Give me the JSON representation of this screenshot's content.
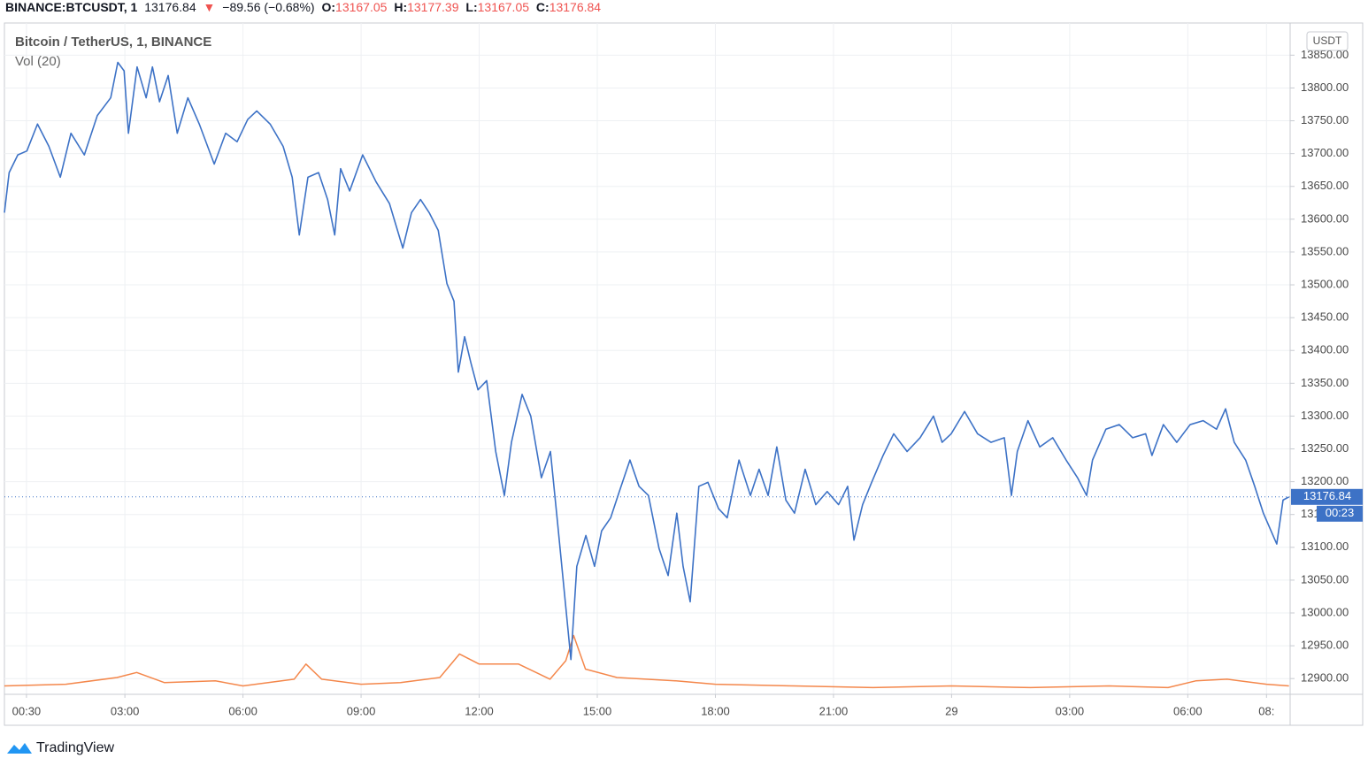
{
  "header": {
    "symbol": "BINANCE:BTCUSDT, 1",
    "last": "13176.84",
    "arrow": "▼",
    "change": "−89.56 (−0.68%)",
    "open_label": "O:",
    "open": "13167.05",
    "high_label": "H:",
    "high": "13177.39",
    "low_label": "L:",
    "low": "13167.05",
    "close_label": "C:",
    "close": "13176.84"
  },
  "chart_data": {
    "type": "line",
    "currency": "USDT",
    "series": [
      {
        "name": "Bitcoin / TetherUS, 1, BINANCE",
        "color": "#3d72c6",
        "x": [
          -0.06,
          0.06,
          0.28,
          0.51,
          0.78,
          1.07,
          1.36,
          1.63,
          1.97,
          2.3,
          2.64,
          2.82,
          2.98,
          3.09,
          3.31,
          3.54,
          3.7,
          3.88,
          4.1,
          4.33,
          4.6,
          4.89,
          5.27,
          5.56,
          5.85,
          6.12,
          6.35,
          6.69,
          7.02,
          7.25,
          7.43,
          7.65,
          7.92,
          8.15,
          8.33,
          8.48,
          8.71,
          9.04,
          9.38,
          9.72,
          10.06,
          10.28,
          10.51,
          10.73,
          10.96,
          11.18,
          11.36,
          11.47,
          11.63,
          11.79,
          11.97,
          12.19,
          12.42,
          12.64,
          12.82,
          13.09,
          13.31,
          13.58,
          13.81,
          13.99,
          14.21,
          14.33,
          14.48,
          14.71,
          14.93,
          15.11,
          15.34,
          15.56,
          15.83,
          16.06,
          16.3,
          16.57,
          16.8,
          17.02,
          17.18,
          17.36,
          17.58,
          17.81,
          18.08,
          18.3,
          18.6,
          18.89,
          19.11,
          19.34,
          19.56,
          19.79,
          20.01,
          20.28,
          20.55,
          20.84,
          21.13,
          21.36,
          21.52,
          21.74,
          21.97,
          22.26,
          22.53,
          22.87,
          23.2,
          23.54,
          23.76,
          23.99,
          24.33,
          24.66,
          25.0,
          25.34,
          25.52,
          25.67,
          25.94,
          26.24,
          26.57,
          26.91,
          27.2,
          27.43,
          27.58,
          27.92,
          28.26,
          28.6,
          28.93,
          29.09,
          29.38,
          29.72,
          30.06,
          30.39,
          30.73,
          30.96,
          31.18,
          31.47,
          31.7,
          31.92,
          32.26,
          32.42,
          32.57
        ],
        "values": [
          13610,
          13671,
          13698,
          13704,
          13745,
          13711,
          13664,
          13731,
          13698,
          13758,
          13785,
          13839,
          13826,
          13731,
          13832,
          13785,
          13832,
          13779,
          13819,
          13731,
          13785,
          13745,
          13684,
          13731,
          13718,
          13752,
          13765,
          13745,
          13711,
          13664,
          13576,
          13664,
          13671,
          13630,
          13576,
          13677,
          13643,
          13698,
          13657,
          13624,
          13556,
          13610,
          13630,
          13610,
          13583,
          13502,
          13475,
          13367,
          13421,
          13381,
          13340,
          13354,
          13246,
          13179,
          13260,
          13333,
          13300,
          13206,
          13246,
          13138,
          13003,
          12929,
          13071,
          13118,
          13071,
          13125,
          13145,
          13185,
          13233,
          13193,
          13179,
          13098,
          13057,
          13152,
          13071,
          13017,
          13193,
          13199,
          13159,
          13145,
          13233,
          13179,
          13219,
          13179,
          13253,
          13172,
          13152,
          13219,
          13165,
          13185,
          13165,
          13193,
          13111,
          13165,
          13199,
          13240,
          13273,
          13246,
          13267,
          13300,
          13260,
          13273,
          13307,
          13273,
          13260,
          13267,
          13179,
          13246,
          13293,
          13253,
          13267,
          13233,
          13206,
          13179,
          13233,
          13280,
          13287,
          13267,
          13273,
          13240,
          13287,
          13260,
          13287,
          13293,
          13280,
          13311,
          13260,
          13233,
          13193,
          13152,
          13105,
          13172,
          13176.84
        ]
      },
      {
        "name": "Vol (20)",
        "color": "#f4874b",
        "axis": "y2",
        "x": [
          -0.06,
          1.5,
          2.8,
          3.3,
          4,
          5.3,
          6,
          7.3,
          7.6,
          8,
          9,
          10,
          11,
          11.5,
          12,
          13,
          13.8,
          14.2,
          14.4,
          14.7,
          15.5,
          17,
          18,
          20,
          22,
          24,
          26,
          28,
          29.5,
          30.2,
          31,
          32,
          32.57
        ],
        "values": [
          5,
          6,
          10,
          13,
          7,
          8,
          5,
          9,
          18,
          9,
          6,
          7,
          10,
          24,
          18,
          18,
          9,
          20,
          35,
          15,
          10,
          8,
          6,
          5,
          4,
          5,
          4,
          5,
          4,
          8,
          9,
          6,
          5
        ]
      }
    ],
    "last_price": {
      "value": 13176.84,
      "label": "13176.84"
    },
    "countdown": "00:23",
    "xlim": [
      -0.06,
      32.6
    ],
    "xticks": [
      {
        "value": 0.5,
        "label": "00:30"
      },
      {
        "value": 3,
        "label": "03:00"
      },
      {
        "value": 6,
        "label": "06:00"
      },
      {
        "value": 9,
        "label": "09:00"
      },
      {
        "value": 12,
        "label": "12:00"
      },
      {
        "value": 15,
        "label": "15:00"
      },
      {
        "value": 18,
        "label": "18:00"
      },
      {
        "value": 21,
        "label": "21:00"
      },
      {
        "value": 24,
        "label": "29"
      },
      {
        "value": 27,
        "label": "03:00"
      },
      {
        "value": 30,
        "label": "06:00"
      },
      {
        "value": 32,
        "label": "08:"
      }
    ],
    "ylim": [
      12876,
      13899
    ],
    "yticks": [
      {
        "value": 12900,
        "label": "12900.00"
      },
      {
        "value": 12950,
        "label": "12950.00"
      },
      {
        "value": 13000,
        "label": "13000.00"
      },
      {
        "value": 13050,
        "label": "13050.00"
      },
      {
        "value": 13100,
        "label": "13100.00"
      },
      {
        "value": 13150,
        "label": "13150.00"
      },
      {
        "value": 13200,
        "label": "13200.00"
      },
      {
        "value": 13250,
        "label": "13250.00"
      },
      {
        "value": 13300,
        "label": "13300.00"
      },
      {
        "value": 13350,
        "label": "13350.00"
      },
      {
        "value": 13400,
        "label": "13400.00"
      },
      {
        "value": 13450,
        "label": "13450.00"
      },
      {
        "value": 13500,
        "label": "13500.00"
      },
      {
        "value": 13550,
        "label": "13550.00"
      },
      {
        "value": 13600,
        "label": "13600.00"
      },
      {
        "value": 13650,
        "label": "13650.00"
      },
      {
        "value": 13700,
        "label": "13700.00"
      },
      {
        "value": 13750,
        "label": "13750.00"
      },
      {
        "value": 13800,
        "label": "13800.00"
      },
      {
        "value": 13850,
        "label": "13850.00"
      }
    ],
    "y2lim": [
      0,
      100
    ],
    "grid": true
  },
  "footer": {
    "brand": "TradingView"
  }
}
